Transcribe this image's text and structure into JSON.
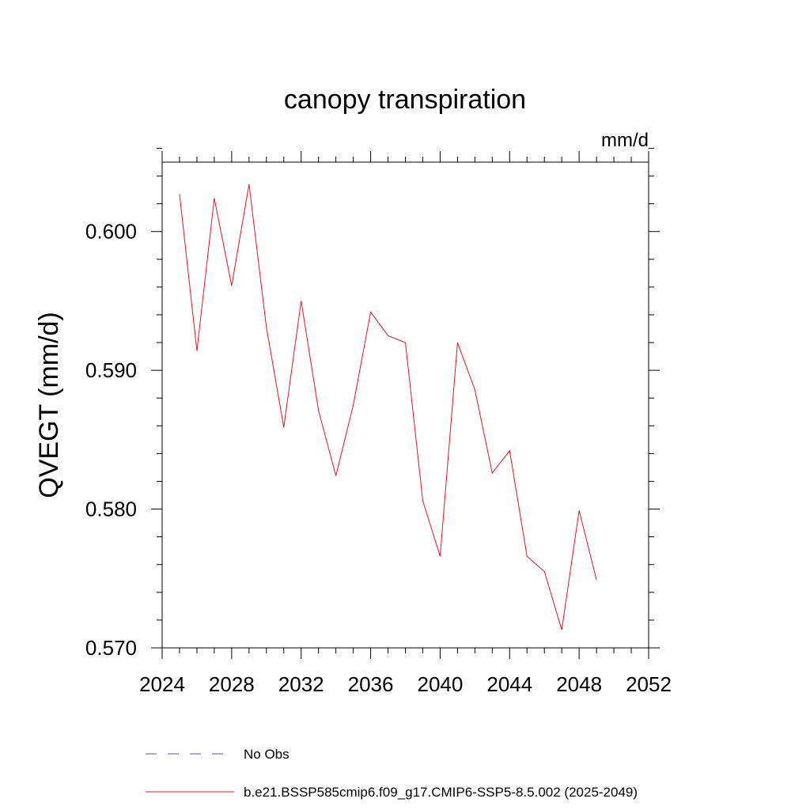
{
  "chart_data": {
    "type": "line",
    "title": "canopy transpiration",
    "units": "mm/d",
    "ylabel": "QVEGT  (mm/d)",
    "xlabel": "",
    "xlim": [
      2024,
      2052
    ],
    "ylim": [
      0.57,
      0.605
    ],
    "xticks": [
      2024,
      2028,
      2032,
      2036,
      2040,
      2044,
      2048,
      2052
    ],
    "xtick_labels": [
      "2024",
      "2028",
      "2032",
      "2036",
      "2040",
      "2044",
      "2048",
      "2052"
    ],
    "yticks": [
      0.57,
      0.58,
      0.59,
      0.6
    ],
    "ytick_labels": [
      "0.570",
      "0.580",
      "0.590",
      "0.600"
    ],
    "series": [
      {
        "name": "b.e21.BSSP585cmip6.f09_g17.CMIP6-SSP5-8.5.002 (2025-2049)",
        "color": "#e8141c",
        "x": [
          2025,
          2026,
          2027,
          2028,
          2029,
          2030,
          2031,
          2032,
          2033,
          2034,
          2035,
          2036,
          2037,
          2038,
          2039,
          2040,
          2041,
          2042,
          2043,
          2044,
          2045,
          2046,
          2047,
          2048,
          2049
        ],
        "y": [
          0.6027,
          0.5914,
          0.6024,
          0.5961,
          0.6034,
          0.5931,
          0.5859,
          0.595,
          0.5871,
          0.5824,
          0.5875,
          0.5942,
          0.5925,
          0.592,
          0.5806,
          0.5766,
          0.592,
          0.5886,
          0.5826,
          0.5842,
          0.5766,
          0.5755,
          0.5713,
          0.5799,
          0.5749
        ]
      }
    ],
    "legend": [
      {
        "label": "No Obs",
        "style": "dashed",
        "color": "#5b4fc0"
      },
      {
        "label": "b.e21.BSSP585cmip6.f09_g17.CMIP6-SSP5-8.5.002 (2025-2049)",
        "style": "solid",
        "color": "#e8141c"
      }
    ],
    "legend_placement": "bottom"
  }
}
